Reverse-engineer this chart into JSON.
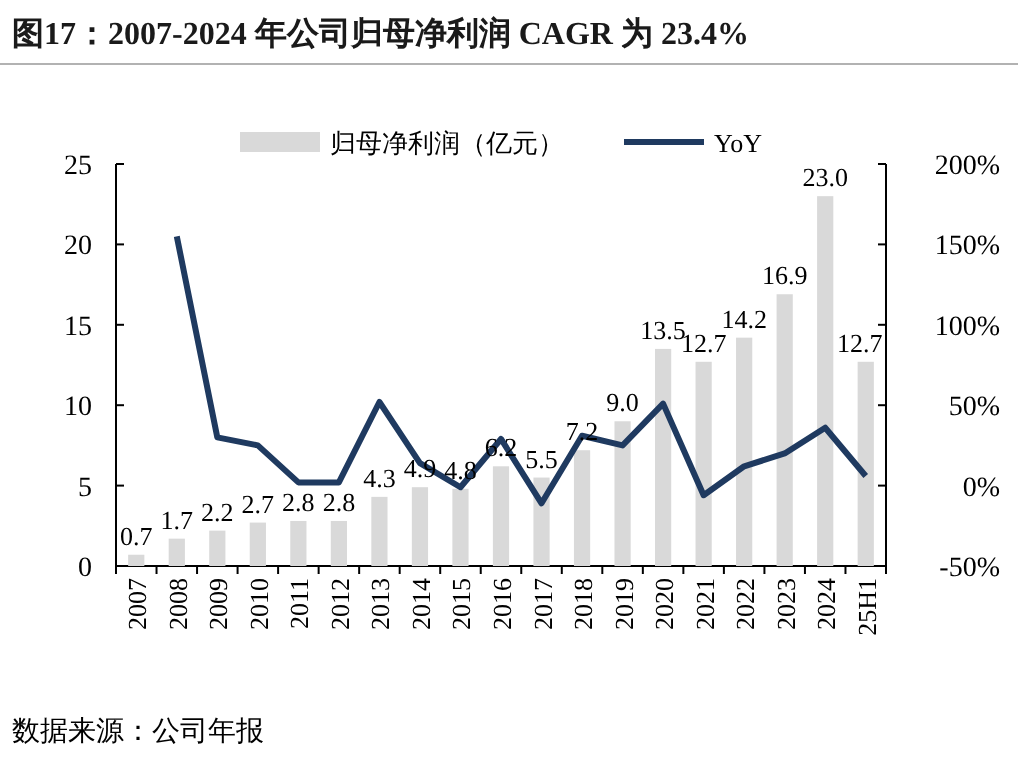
{
  "chart_data": {
    "type": "bar",
    "title": "图17：2007-2024 年公司归母净利润 CAGR 为 23.4%",
    "annotations": [
      "数据来源：公司年报"
    ],
    "categories": [
      "2007",
      "2008",
      "2009",
      "2010",
      "2011",
      "2012",
      "2013",
      "2014",
      "2015",
      "2016",
      "2017",
      "2018",
      "2019",
      "2020",
      "2021",
      "2022",
      "2023",
      "2024",
      "25H1"
    ],
    "series": [
      {
        "name": "归母净利润（亿元）",
        "color": "#d9d9d9",
        "values": [
          0.7,
          1.7,
          2.2,
          2.7,
          2.8,
          2.8,
          4.3,
          4.9,
          4.8,
          6.2,
          5.5,
          7.2,
          9.0,
          13.5,
          12.7,
          14.2,
          16.9,
          23.0,
          12.7
        ],
        "value_labels": [
          "0.7",
          "1.7",
          "2.2",
          "2.7",
          "2.8",
          "2.8",
          "4.3",
          "4.9",
          "4.8",
          "6.2",
          "5.5",
          "7.2",
          "9.0",
          "13.5",
          "12.7",
          "14.2",
          "16.9",
          "23.0",
          "12.7"
        ]
      },
      {
        "name": "YoY",
        "type": "line",
        "axis": "y2",
        "color": "#1f3a60",
        "values": [
          null,
          155,
          30,
          25,
          2,
          2,
          52,
          14,
          -1,
          29,
          -11,
          31,
          25,
          51,
          -6,
          12,
          20,
          36,
          6
        ]
      }
    ],
    "ylim": [
      0,
      25
    ],
    "yticks": [
      0,
      5,
      10,
      15,
      20,
      25
    ],
    "y2lim": [
      -50,
      200
    ],
    "y2ticks": [
      {
        "value": -50,
        "label": "-50%"
      },
      {
        "value": 0,
        "label": "0%"
      },
      {
        "value": 50,
        "label": "50%"
      },
      {
        "value": 100,
        "label": "100%"
      },
      {
        "value": 150,
        "label": "150%"
      },
      {
        "value": 200,
        "label": "200%"
      }
    ],
    "legend": "top",
    "grid": false
  }
}
